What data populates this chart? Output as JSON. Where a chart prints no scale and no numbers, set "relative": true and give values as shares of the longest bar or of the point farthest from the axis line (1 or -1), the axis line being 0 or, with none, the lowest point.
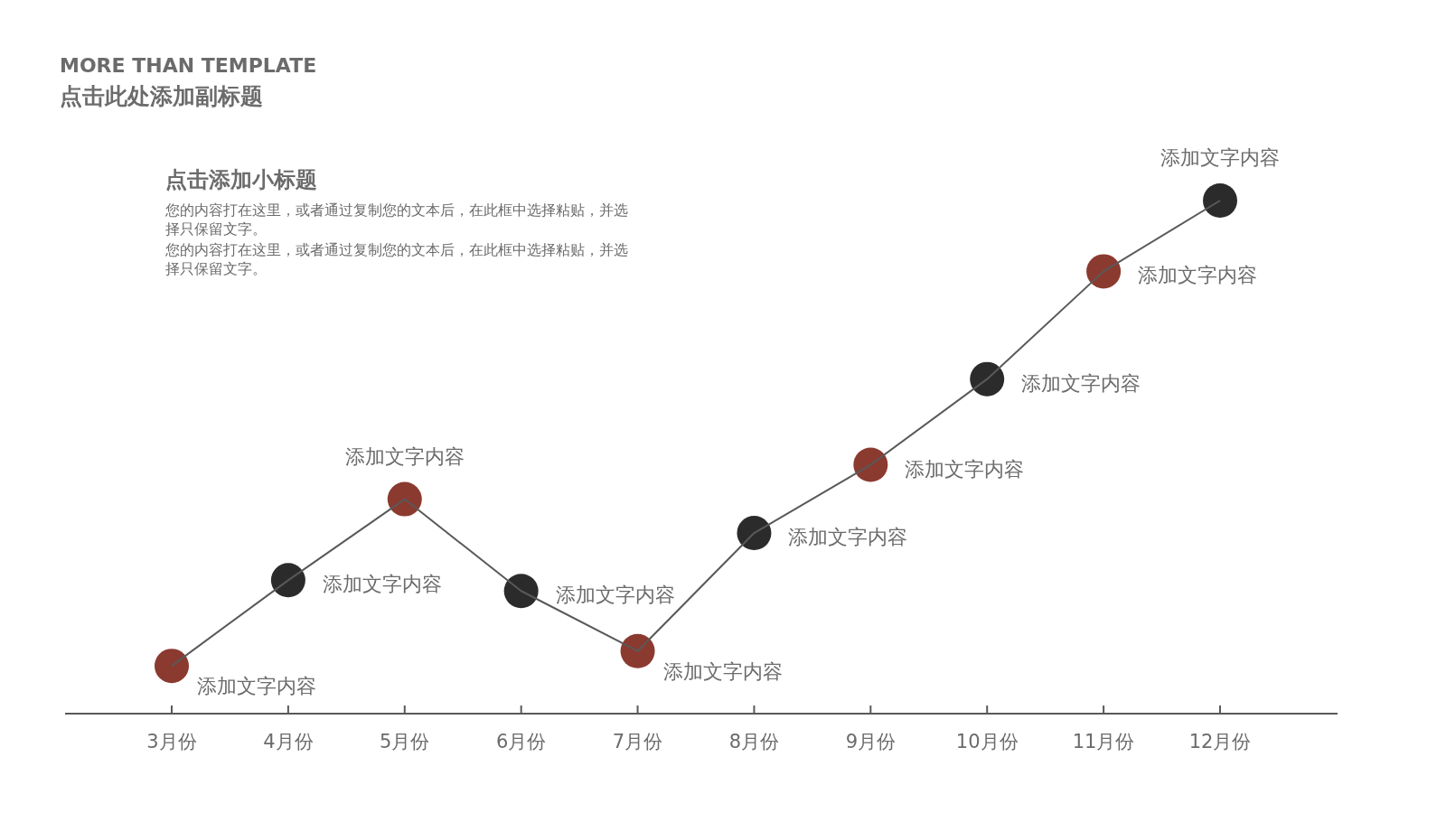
{
  "chart_data": {
    "type": "line",
    "title": "MORE THAN TEMPLATE",
    "subtitle": "点击此处添加副标题",
    "annotations": [
      "点击添加小标题",
      "您的内容打在这里，或者通过复制您的文本后，在此框中选择粘贴，并选择只保留文字。",
      "您的内容打在这里，或者通过复制您的文本后，在此框中选择粘贴，并选择只保留文字。",
      {
        "text": "添加文字内容",
        "x": "3月份",
        "y": 0.093
      },
      {
        "text": "添加文字内容",
        "x": "4月份",
        "y": 0.26
      },
      {
        "text": "添加文字内容",
        "x": "5月份",
        "y": 0.418
      },
      {
        "text": "添加文字内容",
        "x": "6月份",
        "y": 0.239
      },
      {
        "text": "添加文字内容",
        "x": "7月份",
        "y": 0.122
      },
      {
        "text": "添加文字内容",
        "x": "8月份",
        "y": 0.352
      },
      {
        "text": "添加文字内容",
        "x": "9月份",
        "y": 0.485
      },
      {
        "text": "添加文字内容",
        "x": "10月份",
        "y": 0.652
      },
      {
        "text": "添加文字内容",
        "x": "11月份",
        "y": 0.862
      },
      {
        "text": "添加文字内容",
        "x": "12月份",
        "y": 1
      }
    ],
    "categories": [
      "3月份",
      "4月份",
      "5月份",
      "6月份",
      "7月份",
      "8月份",
      "9月份",
      "10月份",
      "11月份",
      "12月份"
    ],
    "values": [
      0.093,
      0.26,
      0.418,
      0.239,
      0.122,
      0.352,
      0.485,
      0.652,
      0.862,
      1
    ],
    "color": "#595959",
    "colors": [
      "#8b3a2f",
      "#2b2b2b",
      "#8b3a2f",
      "#2b2b2b",
      "#8b3a2f",
      "#2b2b2b",
      "#8b3a2f",
      "#2b2b2b",
      "#8b3a2f",
      "#2b2b2b"
    ],
    "relative": true,
    "marker": "circle",
    "line_style": "solid"
  }
}
